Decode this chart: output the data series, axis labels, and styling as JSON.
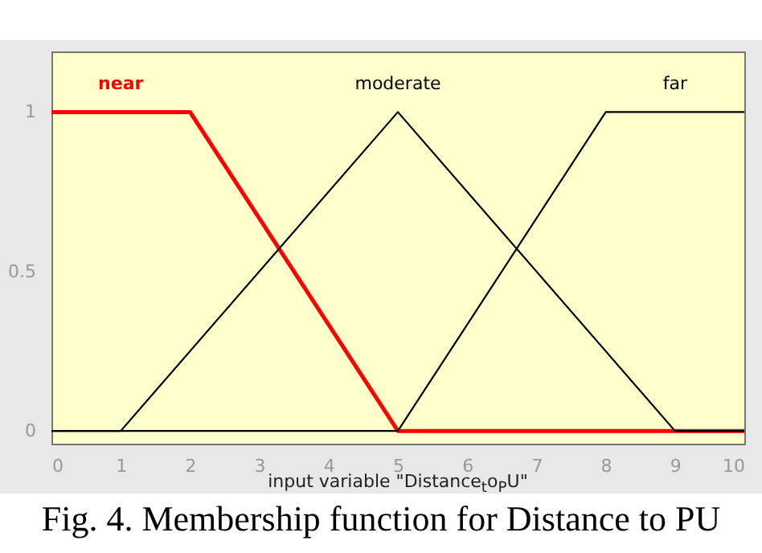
{
  "chart_data": {
    "type": "line",
    "xlabel": "input variable \"Distance$_{t}$o$_{P}$U\"",
    "annotations": [
      "Fig. 4. Membership function for Distance to PU"
    ],
    "xlim": [
      0,
      10
    ],
    "ylim": [
      -0.04,
      1.19
    ],
    "xticks": [
      0,
      1,
      2,
      3,
      4,
      5,
      6,
      7,
      8,
      9,
      10
    ],
    "yticks": [
      0,
      0.5,
      1
    ],
    "grid": false,
    "marker": "none",
    "line_style": "solid",
    "series": [
      {
        "name": "near",
        "color": "#ff0000",
        "x": [
          0,
          2,
          5,
          10
        ],
        "values": [
          1,
          1,
          0,
          0
        ]
      },
      {
        "name": "moderate",
        "color": "#000000",
        "x": [
          0,
          1,
          5,
          9,
          10
        ],
        "values": [
          0,
          0,
          1,
          0,
          0
        ]
      },
      {
        "name": "far",
        "color": "#000000",
        "x": [
          0,
          5,
          8,
          10
        ],
        "values": [
          0,
          0,
          1,
          1
        ]
      }
    ]
  }
}
